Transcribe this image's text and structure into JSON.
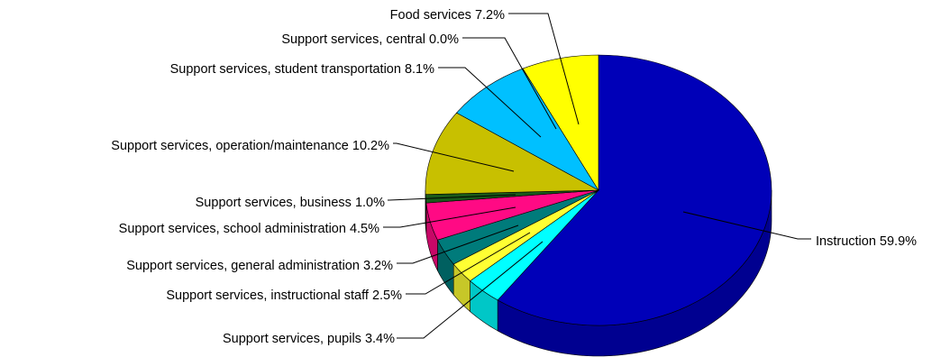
{
  "chart_data": {
    "type": "pie",
    "style": "3d",
    "title": "",
    "start_direction": "twelve-o-clock",
    "direction": "clockwise",
    "slices": [
      {
        "name": "Instruction",
        "value": 59.9,
        "label": "Instruction 59.9%",
        "color": "#0000b8"
      },
      {
        "name": "Support services, pupils",
        "value": 3.4,
        "label": "Support services, pupils 3.4%",
        "color": "#00ffff"
      },
      {
        "name": "Support services, instructional staff",
        "value": 2.5,
        "label": "Support services, instructional staff 2.5%",
        "color": "#ffff33"
      },
      {
        "name": "Support services, general administration",
        "value": 3.2,
        "label": "Support services, general administration 3.2%",
        "color": "#007b7b"
      },
      {
        "name": "Support services, school administration",
        "value": 4.5,
        "label": "Support services, school administration 4.5%",
        "color": "#ff0a84"
      },
      {
        "name": "Support services, business",
        "value": 1.0,
        "label": "Support services, business 1.0%",
        "color": "#1a5a1a"
      },
      {
        "name": "Support services, operation/maintenance",
        "value": 10.2,
        "label": "Support services, operation/maintenance 10.2%",
        "color": "#c8c000"
      },
      {
        "name": "Support services, student transportation",
        "value": 8.1,
        "label": "Support services, student transportation 8.1%",
        "color": "#00c0ff"
      },
      {
        "name": "Support services, central",
        "value": 0.0,
        "label": "Support services, central 0.0%",
        "color": "#800080"
      },
      {
        "name": "Food services",
        "value": 7.2,
        "label": "Food services 7.2%",
        "color": "#ffff00"
      }
    ]
  }
}
